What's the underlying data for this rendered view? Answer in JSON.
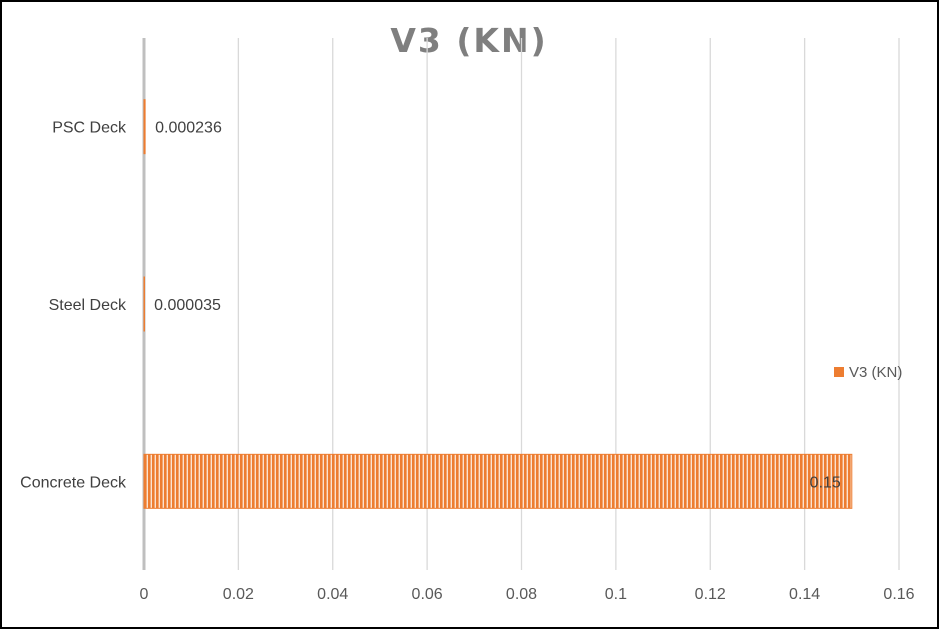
{
  "chart_data": {
    "type": "bar",
    "orientation": "horizontal",
    "title": "V3 (KN)",
    "categories": [
      "Concrete Deck",
      "Steel Deck",
      "PSC Deck"
    ],
    "series": [
      {
        "name": "V3 (KN)",
        "values": [
          0.15,
          3.5e-05,
          0.000236
        ],
        "color": "#ed7d31"
      }
    ],
    "data_labels": [
      "0.15",
      "0.000035",
      "0.000236"
    ],
    "xlim": [
      0,
      0.16
    ],
    "xticks": [
      0,
      0.02,
      0.04,
      0.06,
      0.08,
      0.1,
      0.12,
      0.14,
      0.16
    ],
    "xtick_labels": [
      "0",
      "0.02",
      "0.04",
      "0.06",
      "0.08",
      "0.1",
      "0.12",
      "0.14",
      "0.16"
    ],
    "grid": "vertical",
    "legend_position": "right",
    "bar_pattern": "vertical-stripes"
  }
}
